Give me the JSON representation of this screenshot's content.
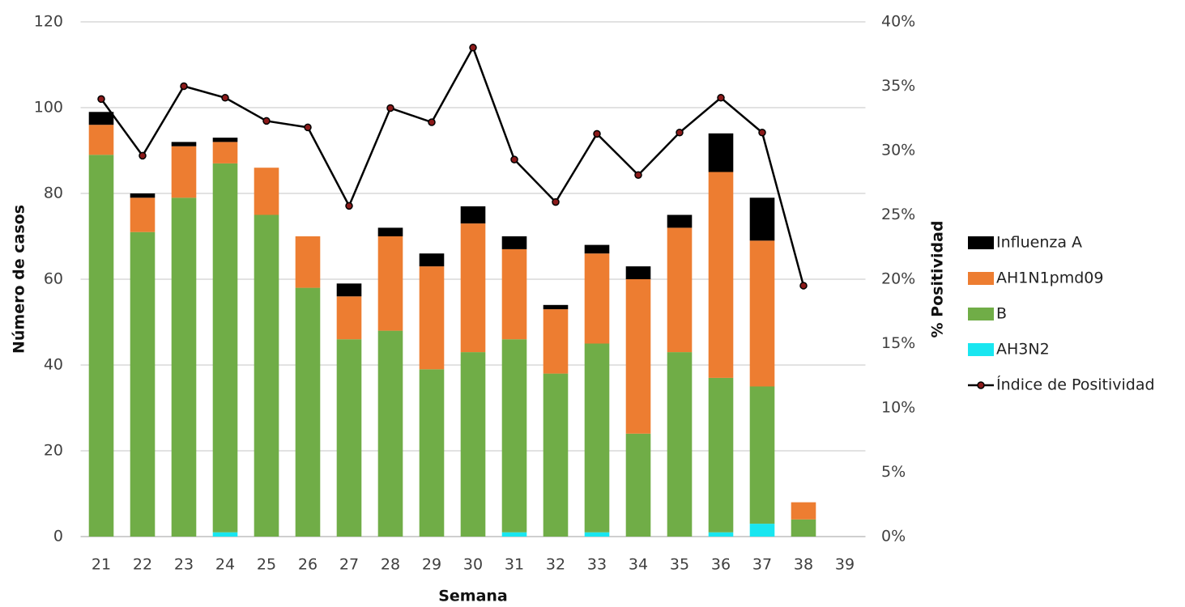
{
  "chart_data": {
    "type": "bar-line",
    "x_label": "Semana",
    "y_label": "Número de casos",
    "y2_label": "% Positividad",
    "categories": [
      "21",
      "22",
      "23",
      "24",
      "25",
      "26",
      "27",
      "28",
      "29",
      "30",
      "31",
      "32",
      "33",
      "34",
      "35",
      "36",
      "37",
      "38",
      "39"
    ],
    "ylim": [
      0,
      120
    ],
    "yticks": [
      0,
      20,
      40,
      60,
      80,
      100,
      120
    ],
    "y2lim": [
      0,
      40
    ],
    "y2ticks": [
      {
        "value": 0,
        "label": "0%"
      },
      {
        "value": 5,
        "label": "5%"
      },
      {
        "value": 10,
        "label": "10%"
      },
      {
        "value": 15,
        "label": "15%"
      },
      {
        "value": 20,
        "label": "20%"
      },
      {
        "value": 25,
        "label": "25%"
      },
      {
        "value": 30,
        "label": "30%"
      },
      {
        "value": 35,
        "label": "35%"
      },
      {
        "value": 40,
        "label": "40%"
      }
    ],
    "grid": true,
    "series": [
      {
        "name": "AH3N2",
        "type": "bar",
        "color": "#19e6f0",
        "values": [
          0,
          0,
          0,
          1,
          0,
          0,
          0,
          0,
          0,
          0,
          1,
          0,
          1,
          0,
          0,
          1,
          3,
          0,
          null
        ]
      },
      {
        "name": "B",
        "type": "bar",
        "color": "#70ad47",
        "values": [
          89,
          71,
          79,
          86,
          75,
          58,
          46,
          48,
          39,
          43,
          45,
          38,
          44,
          24,
          43,
          36,
          32,
          4,
          null
        ]
      },
      {
        "name": "AH1N1pmd09",
        "type": "bar",
        "color": "#ed7d31",
        "values": [
          7,
          8,
          12,
          5,
          11,
          12,
          10,
          22,
          24,
          30,
          21,
          15,
          21,
          36,
          29,
          48,
          34,
          4,
          null
        ]
      },
      {
        "name": "Influenza A",
        "type": "bar",
        "color": "#000000",
        "values": [
          3,
          1,
          1,
          1,
          0,
          0,
          3,
          2,
          3,
          4,
          3,
          1,
          2,
          3,
          3,
          9,
          10,
          0,
          null
        ]
      },
      {
        "name": "Índice de Positividad",
        "type": "line",
        "axis": "y2",
        "color": "#000000",
        "marker_color": "#8b1a1a",
        "values": [
          34.0,
          29.6,
          35.0,
          34.1,
          32.3,
          31.8,
          25.7,
          33.3,
          32.2,
          38.0,
          29.3,
          26.0,
          31.3,
          28.1,
          31.4,
          34.1,
          31.4,
          19.5,
          null
        ]
      }
    ]
  }
}
